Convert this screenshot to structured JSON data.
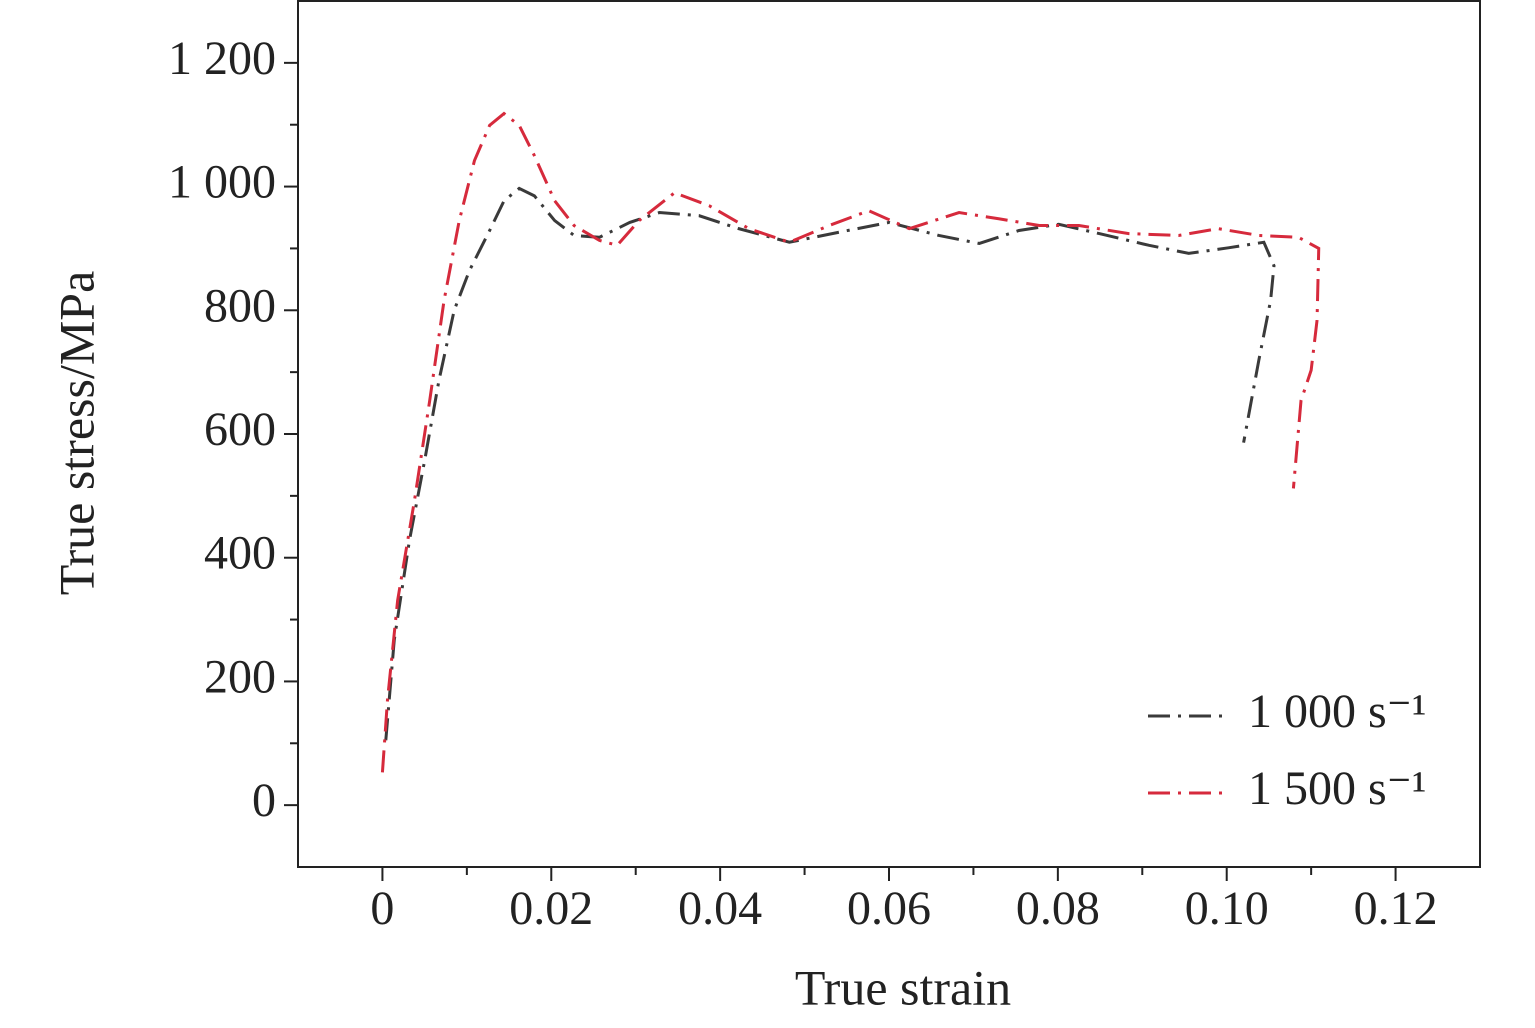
{
  "chart_data": {
    "type": "line",
    "xlabel": "True strain",
    "ylabel": "True stress/MPa",
    "xlim": [
      -0.01,
      0.13
    ],
    "xticks": [
      0,
      0.02,
      0.04,
      0.06,
      0.08,
      {
        "value": 0.1,
        "label": "0.10"
      },
      0.12
    ],
    "ylim": [
      -100,
      1300
    ],
    "yticks": [
      0,
      200,
      400,
      600,
      800,
      {
        "value": 1000,
        "label": "1 000"
      },
      {
        "value": 1200,
        "label": "1 200"
      }
    ],
    "legend": "lower right",
    "series": [
      {
        "name": "1 000 s⁻¹",
        "color": "#3a3a3a",
        "x": [
          0.0004,
          0.0014,
          0.0032,
          0.005,
          0.0067,
          0.0085,
          0.0103,
          0.0127,
          0.0144,
          0.0162,
          0.018,
          0.0204,
          0.0227,
          0.0257,
          0.0293,
          0.0328,
          0.0375,
          0.0422,
          0.0482,
          0.054,
          0.06,
          0.0659,
          0.0707,
          0.0754,
          0.0801,
          0.0849,
          0.0908,
          0.0955,
          0.1002,
          0.1044,
          0.1056,
          0.1052,
          0.1038,
          0.102
        ],
        "values": [
          105,
          267,
          428,
          557,
          687,
          800,
          864,
          929,
          977,
          997,
          985,
          945,
          921,
          918,
          942,
          958,
          953,
          932,
          910,
          926,
          942,
          921,
          908,
          929,
          939,
          924,
          905,
          892,
          901,
          910,
          872,
          816,
          719,
          586
        ]
      },
      {
        "name": "1 500 s⁻¹",
        "color": "#d62a3c",
        "x": [
          0,
          0.0006,
          0.0018,
          0.0038,
          0.0056,
          0.0073,
          0.0091,
          0.0109,
          0.0127,
          0.0144,
          0.0162,
          0.018,
          0.0204,
          0.0227,
          0.0257,
          0.0278,
          0.0304,
          0.0346,
          0.0387,
          0.0434,
          0.0482,
          0.0529,
          0.0576,
          0.0624,
          0.0683,
          0.073,
          0.0778,
          0.0825,
          0.0884,
          0.0943,
          0.099,
          0.1038,
          0.1085,
          0.1109,
          0.1107,
          0.11,
          0.1088,
          0.1079
        ],
        "values": [
          53,
          170,
          331,
          493,
          654,
          816,
          945,
          1042,
          1099,
          1118,
          1099,
          1050,
          977,
          937,
          913,
          905,
          945,
          990,
          969,
          932,
          910,
          937,
          961,
          932,
          958,
          948,
          937,
          937,
          924,
          921,
          932,
          921,
          918,
          900,
          784,
          703,
          654,
          512
        ]
      }
    ]
  }
}
